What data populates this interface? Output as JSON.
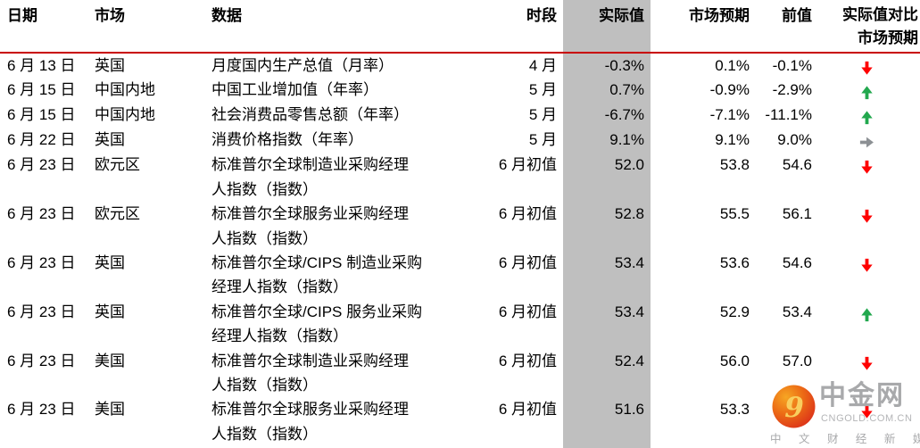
{
  "colors": {
    "header_rule": "#C80000",
    "actual_column_bg": "#BFBFBF",
    "arrow_down": "#FE0000",
    "arrow_up": "#22A84E",
    "arrow_right": "#8C9094",
    "watermark_gray": "#A8A9AB"
  },
  "table": {
    "headers": {
      "date": "日期",
      "market": "市场",
      "indicator": "数据",
      "period": "时段",
      "actual": "实际值",
      "expected": "市场预期",
      "previous": "前值",
      "comparison": "实际值对比\n市场预期"
    },
    "rows": [
      {
        "date": "6 月 13 日",
        "market": "英国",
        "indicator": "月度国内生产总值（月率）",
        "period": "4 月",
        "actual": "-0.3%",
        "expected": "0.1%",
        "previous": "-0.1%",
        "trend": "down"
      },
      {
        "date": "6 月 15 日",
        "market": "中国内地",
        "indicator": "中国工业增加值（年率）",
        "period": "5 月",
        "actual": "0.7%",
        "expected": "-0.9%",
        "previous": "-2.9%",
        "trend": "up"
      },
      {
        "date": "6 月 15 日",
        "market": "中国内地",
        "indicator": "社会消费品零售总额（年率）",
        "period": "5 月",
        "actual": "-6.7%",
        "expected": "-7.1%",
        "previous": "-11.1%",
        "trend": "up"
      },
      {
        "date": "6 月 22 日",
        "market": "英国",
        "indicator": "消费价格指数（年率）",
        "period": "5 月",
        "actual": "9.1%",
        "expected": "9.1%",
        "previous": "9.0%",
        "trend": "right"
      },
      {
        "date": "6 月 23 日",
        "market": "欧元区",
        "indicator": "标准普尔全球制造业采购经理\n人指数（指数）",
        "period": "6 月初值",
        "actual": "52.0",
        "expected": "53.8",
        "previous": "54.6",
        "trend": "down"
      },
      {
        "date": "6 月 23 日",
        "market": "欧元区",
        "indicator": "标准普尔全球服务业采购经理\n人指数（指数）",
        "period": "6 月初值",
        "actual": "52.8",
        "expected": "55.5",
        "previous": "56.1",
        "trend": "down"
      },
      {
        "date": "6 月 23 日",
        "market": "英国",
        "indicator": "标准普尔全球/CIPS 制造业采购\n经理人指数（指数）",
        "period": "6 月初值",
        "actual": "53.4",
        "expected": "53.6",
        "previous": "54.6",
        "trend": "down"
      },
      {
        "date": "6 月 23 日",
        "market": "英国",
        "indicator": "标准普尔全球/CIPS 服务业采购\n经理人指数（指数）",
        "period": "6 月初值",
        "actual": "53.4",
        "expected": "52.9",
        "previous": "53.4",
        "trend": "up"
      },
      {
        "date": "6 月 23 日",
        "market": "美国",
        "indicator": "标准普尔全球制造业采购经理\n人指数（指数）",
        "period": "6 月初值",
        "actual": "52.4",
        "expected": "56.0",
        "previous": "57.0",
        "trend": "down"
      },
      {
        "date": "6 月 23 日",
        "market": "美国",
        "indicator": "标准普尔全球服务业采购经理\n人指数（指数）",
        "period": "6 月初值",
        "actual": "51.6",
        "expected": "53.3",
        "previous": "",
        "trend": "down"
      }
    ]
  },
  "watermark": {
    "brand": "中金网",
    "domain": "CNGOLD.COM.CN",
    "tagline": "中 文 财 经 新 媒 体"
  }
}
